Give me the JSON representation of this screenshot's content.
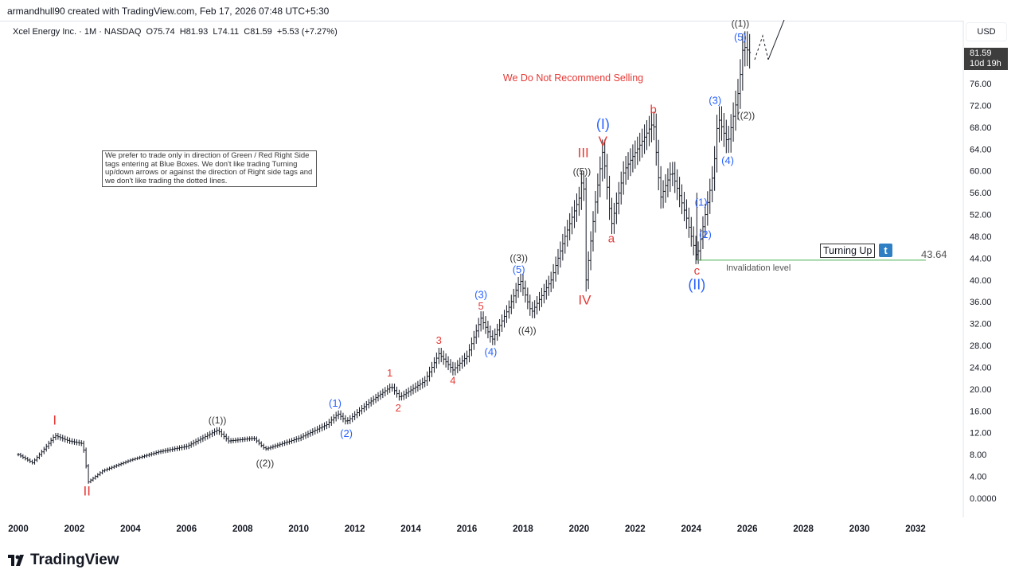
{
  "credit": "armandhull90 created with TradingView.com, Feb 17, 2026 07:48 UTC+5:30",
  "legend": {
    "symbol": "Xcel Energy Inc. · 1M · NASDAQ",
    "open": "O75.74",
    "high": "H81.93",
    "low": "L74.11",
    "close": "C81.59",
    "change": "+5.53 (+7.27%)"
  },
  "currency": "USD",
  "last_price": {
    "price": "81.59",
    "countdown": "10d 19h"
  },
  "headline": "We Do Not Recommend Selling",
  "note": "We prefer to trade only in direction of Green / Red Right Side tags entering at Blue Boxes. We don't like trading Turning up/down arrows or against the direction of Right side tags and we don't like trading the dotted lines.",
  "turning_up": {
    "label": "Turning Up",
    "icon": "t"
  },
  "invalidation": {
    "label": "Invalidation level",
    "value": "43.64",
    "price": 43.64,
    "color": "#4caf50"
  },
  "logo": "TradingView",
  "colors": {
    "red": "#e53935",
    "blue": "#2962ff",
    "black": "#333333",
    "bar": "#131722"
  },
  "chart_data": {
    "type": "ohlc-bar",
    "interval": "1M",
    "xlim": [
      2000,
      2033
    ],
    "ylim": [
      0,
      88
    ],
    "x_ticks": [
      "2000",
      "2002",
      "2004",
      "2006",
      "2008",
      "2010",
      "2012",
      "2014",
      "2016",
      "2018",
      "2020",
      "2022",
      "2024",
      "2026",
      "2028",
      "2030",
      "2032"
    ],
    "y_ticks": [
      "0.0000",
      "4.00",
      "8.00",
      "12.00",
      "16.00",
      "20.00",
      "24.00",
      "28.00",
      "32.00",
      "36.00",
      "40.00",
      "44.00",
      "48.00",
      "52.00",
      "56.00",
      "60.00",
      "64.00",
      "68.00",
      "72.00",
      "76.00"
    ],
    "approx_close_path": [
      [
        2000.0,
        8
      ],
      [
        2000.5,
        6.5
      ],
      [
        2001.0,
        9.5
      ],
      [
        2001.3,
        11.5
      ],
      [
        2001.8,
        10.5
      ],
      [
        2002.3,
        10
      ],
      [
        2002.5,
        3
      ],
      [
        2003.0,
        5
      ],
      [
        2004.0,
        7
      ],
      [
        2005.0,
        8.5
      ],
      [
        2006.0,
        9.5
      ],
      [
        2007.1,
        12.5
      ],
      [
        2007.5,
        10.5
      ],
      [
        2008.4,
        11
      ],
      [
        2008.8,
        9
      ],
      [
        2010.0,
        11
      ],
      [
        2011.0,
        13.5
      ],
      [
        2011.4,
        15.5
      ],
      [
        2011.7,
        14
      ],
      [
        2012.5,
        17.5
      ],
      [
        2013.3,
        20.5
      ],
      [
        2013.6,
        18.5
      ],
      [
        2014.5,
        21.5
      ],
      [
        2015.0,
        26.5
      ],
      [
        2015.5,
        23.5
      ],
      [
        2016.0,
        26
      ],
      [
        2016.5,
        33
      ],
      [
        2016.9,
        29
      ],
      [
        2017.5,
        35
      ],
      [
        2017.9,
        40
      ],
      [
        2018.3,
        34
      ],
      [
        2019.0,
        40
      ],
      [
        2019.5,
        48
      ],
      [
        2020.0,
        55
      ],
      [
        2020.15,
        60
      ],
      [
        2020.25,
        40
      ],
      [
        2020.6,
        55
      ],
      [
        2020.85,
        64
      ],
      [
        2021.15,
        50
      ],
      [
        2021.6,
        60
      ],
      [
        2022.2,
        65
      ],
      [
        2022.65,
        69
      ],
      [
        2022.9,
        55
      ],
      [
        2023.3,
        60
      ],
      [
        2023.8,
        52
      ],
      [
        2024.2,
        44
      ],
      [
        2024.5,
        52
      ],
      [
        2024.8,
        60
      ],
      [
        2024.95,
        70
      ],
      [
        2025.3,
        65
      ],
      [
        2025.7,
        75
      ],
      [
        2025.85,
        83
      ],
      [
        2026.1,
        81.59
      ]
    ],
    "labels": [
      {
        "text": "I",
        "x": 2001.3,
        "y": 13.5,
        "color": "red",
        "size": 17
      },
      {
        "text": "II",
        "x": 2002.45,
        "y": 0.5,
        "color": "red",
        "size": 17
      },
      {
        "text": "((1))",
        "x": 2007.1,
        "y": 13.7,
        "color": "black",
        "size": 12
      },
      {
        "text": "((2))",
        "x": 2008.8,
        "y": 5.8,
        "color": "black",
        "size": 12
      },
      {
        "text": "(1)",
        "x": 2011.3,
        "y": 16.8,
        "color": "blue",
        "size": 13
      },
      {
        "text": "(2)",
        "x": 2011.7,
        "y": 11.2,
        "color": "blue",
        "size": 13
      },
      {
        "text": "1",
        "x": 2013.25,
        "y": 22.3,
        "color": "red",
        "size": 13
      },
      {
        "text": "2",
        "x": 2013.55,
        "y": 15.9,
        "color": "red",
        "size": 13
      },
      {
        "text": "3",
        "x": 2015.0,
        "y": 28.3,
        "color": "red",
        "size": 13
      },
      {
        "text": "4",
        "x": 2015.5,
        "y": 20.9,
        "color": "red",
        "size": 13
      },
      {
        "text": "(3)",
        "x": 2016.5,
        "y": 36.7,
        "color": "blue",
        "size": 13
      },
      {
        "text": "5",
        "x": 2016.5,
        "y": 34.6,
        "color": "red",
        "size": 13
      },
      {
        "text": "(4)",
        "x": 2016.85,
        "y": 26.2,
        "color": "blue",
        "size": 13
      },
      {
        "text": "((3))",
        "x": 2017.85,
        "y": 43.5,
        "color": "black",
        "size": 12
      },
      {
        "text": "(5)",
        "x": 2017.85,
        "y": 41.3,
        "color": "blue",
        "size": 13
      },
      {
        "text": "((4))",
        "x": 2018.15,
        "y": 30.2,
        "color": "black",
        "size": 12
      },
      {
        "text": "III",
        "x": 2020.15,
        "y": 62.5,
        "color": "red",
        "size": 17
      },
      {
        "text": "((5))",
        "x": 2020.1,
        "y": 59.3,
        "color": "black",
        "size": 12
      },
      {
        "text": "IV",
        "x": 2020.2,
        "y": 35.5,
        "color": "red",
        "size": 17
      },
      {
        "text": "(I)",
        "x": 2020.85,
        "y": 67.7,
        "color": "blue",
        "size": 18
      },
      {
        "text": "V",
        "x": 2020.85,
        "y": 64.6,
        "color": "red",
        "size": 17
      },
      {
        "text": "a",
        "x": 2021.15,
        "y": 46.9,
        "color": "red",
        "size": 15
      },
      {
        "text": "b",
        "x": 2022.65,
        "y": 70.5,
        "color": "red",
        "size": 15
      },
      {
        "text": "c",
        "x": 2024.2,
        "y": 41.0,
        "color": "red",
        "size": 15
      },
      {
        "text": "(II)",
        "x": 2024.2,
        "y": 38.3,
        "color": "blue",
        "size": 18
      },
      {
        "text": "(1)",
        "x": 2024.35,
        "y": 53.6,
        "color": "blue",
        "size": 13
      },
      {
        "text": "(2)",
        "x": 2024.5,
        "y": 47.7,
        "color": "blue",
        "size": 13
      },
      {
        "text": "(3)",
        "x": 2024.85,
        "y": 72.3,
        "color": "blue",
        "size": 13
      },
      {
        "text": "(4)",
        "x": 2025.3,
        "y": 61.3,
        "color": "blue",
        "size": 13
      },
      {
        "text": "((2))",
        "x": 2025.95,
        "y": 69.6,
        "color": "black",
        "size": 12
      },
      {
        "text": "(5)",
        "x": 2025.75,
        "y": 83.9,
        "color": "blue",
        "size": 13
      },
      {
        "text": "((1))",
        "x": 2025.75,
        "y": 86.4,
        "color": "black",
        "size": 12
      }
    ]
  }
}
